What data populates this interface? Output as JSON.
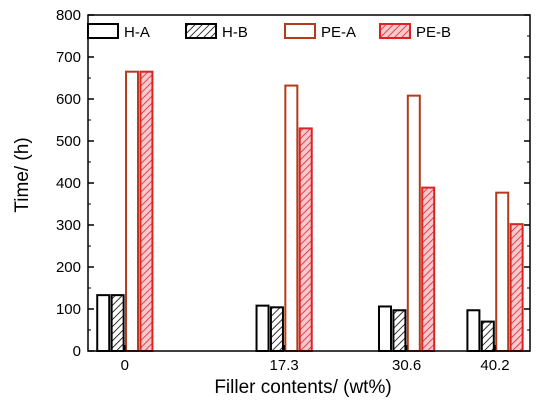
{
  "chart_data": {
    "type": "bar",
    "title": "",
    "xlabel": "Filler contents/ (wt%)",
    "ylabel": "Time/ (h)",
    "ylim": [
      0,
      800
    ],
    "yticks": [
      0,
      100,
      200,
      300,
      400,
      500,
      600,
      700,
      800
    ],
    "x": [
      0,
      17.3,
      30.6,
      40.2
    ],
    "categories": [
      "0",
      "17.3",
      "30.6",
      "40.2"
    ],
    "grid": false,
    "legend_position": "top",
    "series": [
      {
        "name": "H-A",
        "values": [
          133,
          108,
          106,
          97
        ],
        "color": "#000000",
        "hatched": false
      },
      {
        "name": "H-B",
        "values": [
          133,
          104,
          97,
          70
        ],
        "color": "#000000",
        "hatched": true
      },
      {
        "name": "PE-A",
        "values": [
          665,
          632,
          608,
          377
        ],
        "color": "#b33a1a",
        "hatched": false
      },
      {
        "name": "PE-B",
        "values": [
          665,
          530,
          389,
          302
        ],
        "color": "#dd2222",
        "hatched": true
      }
    ]
  }
}
